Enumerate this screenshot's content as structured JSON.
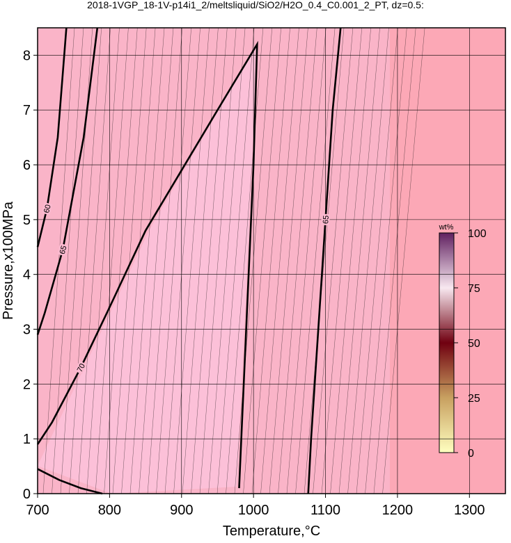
{
  "chart_data": {
    "type": "contour",
    "title": "2018-1VGP_18-1V-p14i1_2/meltsliquid/SiO2/H2O_0.4_C0.001_2_PT, dz=0.5:",
    "x_label": "Temperature,°C",
    "y_label": "Pressure,x100MPa",
    "xlim": [
      700,
      1350
    ],
    "ylim": [
      0,
      8.5
    ],
    "xticks": [
      700,
      800,
      900,
      1000,
      1100,
      1200,
      1300
    ],
    "yticks": [
      0,
      1,
      2,
      3,
      4,
      5,
      6,
      7,
      8
    ],
    "grid": true,
    "contours": [
      {
        "level": 60,
        "color": "#000000",
        "x": [
          740,
          728,
          713,
          700
        ],
        "y": [
          8.5,
          6.5,
          5.2,
          4.5
        ]
      },
      {
        "level": 65,
        "color": "#000000",
        "x": [
          783,
          764,
          735,
          710,
          700
        ],
        "y": [
          8.5,
          6.5,
          4.45,
          3.3,
          2.9
        ]
      },
      {
        "level": 70,
        "color": "#000000",
        "x": [
          980,
          983,
          1000,
          1005,
          950,
          900,
          850,
          800,
          760,
          720,
          700,
          null,
          700,
          730,
          760,
          790
        ],
        "y": [
          0.1,
          1,
          6,
          8.2,
          7.0,
          5.9,
          4.8,
          3.4,
          2.3,
          1.3,
          0.9,
          null,
          0.45,
          0.25,
          0.1,
          0
        ]
      },
      {
        "level": 65,
        "color": "#000000",
        "x": [
          1076,
          1080,
          1090,
          1100,
          1110,
          1121
        ],
        "y": [
          0,
          1,
          3,
          5,
          7,
          8.5
        ]
      }
    ],
    "colorbar": {
      "label": "wt%",
      "lim": [
        0,
        100
      ],
      "ticks": [
        0,
        25,
        50,
        75,
        100
      ]
    }
  }
}
